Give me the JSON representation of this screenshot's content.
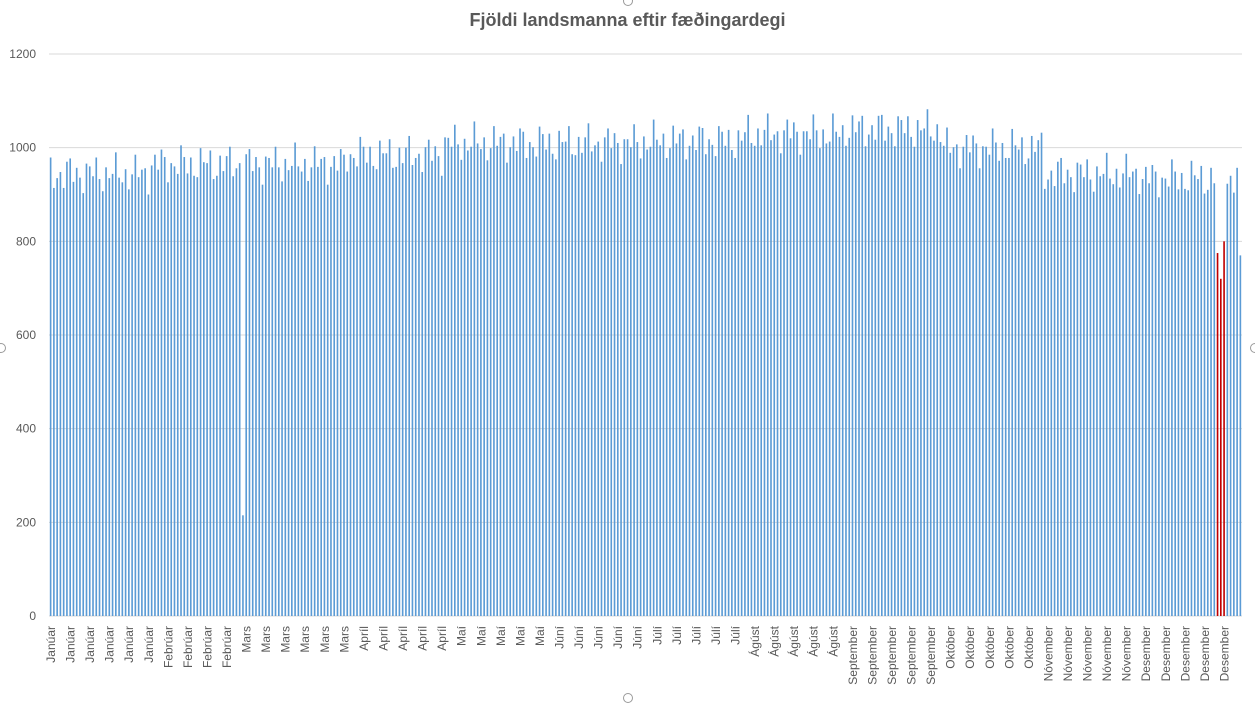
{
  "chart_data": {
    "type": "bar",
    "title": "Fjöldi landsmanna  eftir fæðingardegi",
    "xlabel": "",
    "ylabel": "",
    "ylim": [
      0,
      1200
    ],
    "yticks": [
      0,
      200,
      400,
      600,
      800,
      1000,
      1200
    ],
    "grid": true,
    "legend": "none",
    "colors": {
      "bar": "#5b9bd5",
      "highlight": "#c00000",
      "grid": "#d9d9d9",
      "text": "#595959"
    },
    "x_tick_labels": [
      "Janúar",
      "Janúar",
      "Janúar",
      "Janúar",
      "Janúar",
      "Janúar",
      "Febrúar",
      "Febrúar",
      "Febrúar",
      "Febrúar",
      "Mars",
      "Mars",
      "Mars",
      "Mars",
      "Mars",
      "Mars",
      "Apríl",
      "Apríl",
      "Apríl",
      "Apríl",
      "Apríl",
      "Maí",
      "Maí",
      "Maí",
      "Maí",
      "Maí",
      "Júní",
      "Júní",
      "Júní",
      "Júní",
      "Júní",
      "Júlí",
      "Júlí",
      "Júlí",
      "Júlí",
      "Júlí",
      "Ágúst",
      "Ágúst",
      "Ágúst",
      "Ágúst",
      "Ágúst",
      "September",
      "September",
      "September",
      "September",
      "September",
      "Október",
      "Október",
      "Október",
      "Október",
      "Október",
      "Nóvember",
      "Nóvember",
      "Nóvember",
      "Nóvember",
      "Nóvember",
      "Desember",
      "Desember",
      "Desember",
      "Desember",
      "Desember"
    ],
    "month_day_counts": [
      31,
      29,
      31,
      30,
      31,
      30,
      31,
      31,
      30,
      31,
      30,
      31
    ],
    "month_base_values": [
      945,
      965,
      965,
      985,
      1010,
      1010,
      1015,
      1030,
      1040,
      1000,
      945,
      935
    ],
    "values_note_free": true,
    "special_points": [
      {
        "month": 2,
        "day": 29,
        "value": 215
      },
      {
        "month": 12,
        "day": 24,
        "value": 775,
        "highlight": true
      },
      {
        "month": 12,
        "day": 25,
        "value": 720,
        "highlight": true
      },
      {
        "month": 12,
        "day": 26,
        "value": 800,
        "highlight": true
      },
      {
        "month": 12,
        "day": 31,
        "value": 770
      }
    ]
  }
}
